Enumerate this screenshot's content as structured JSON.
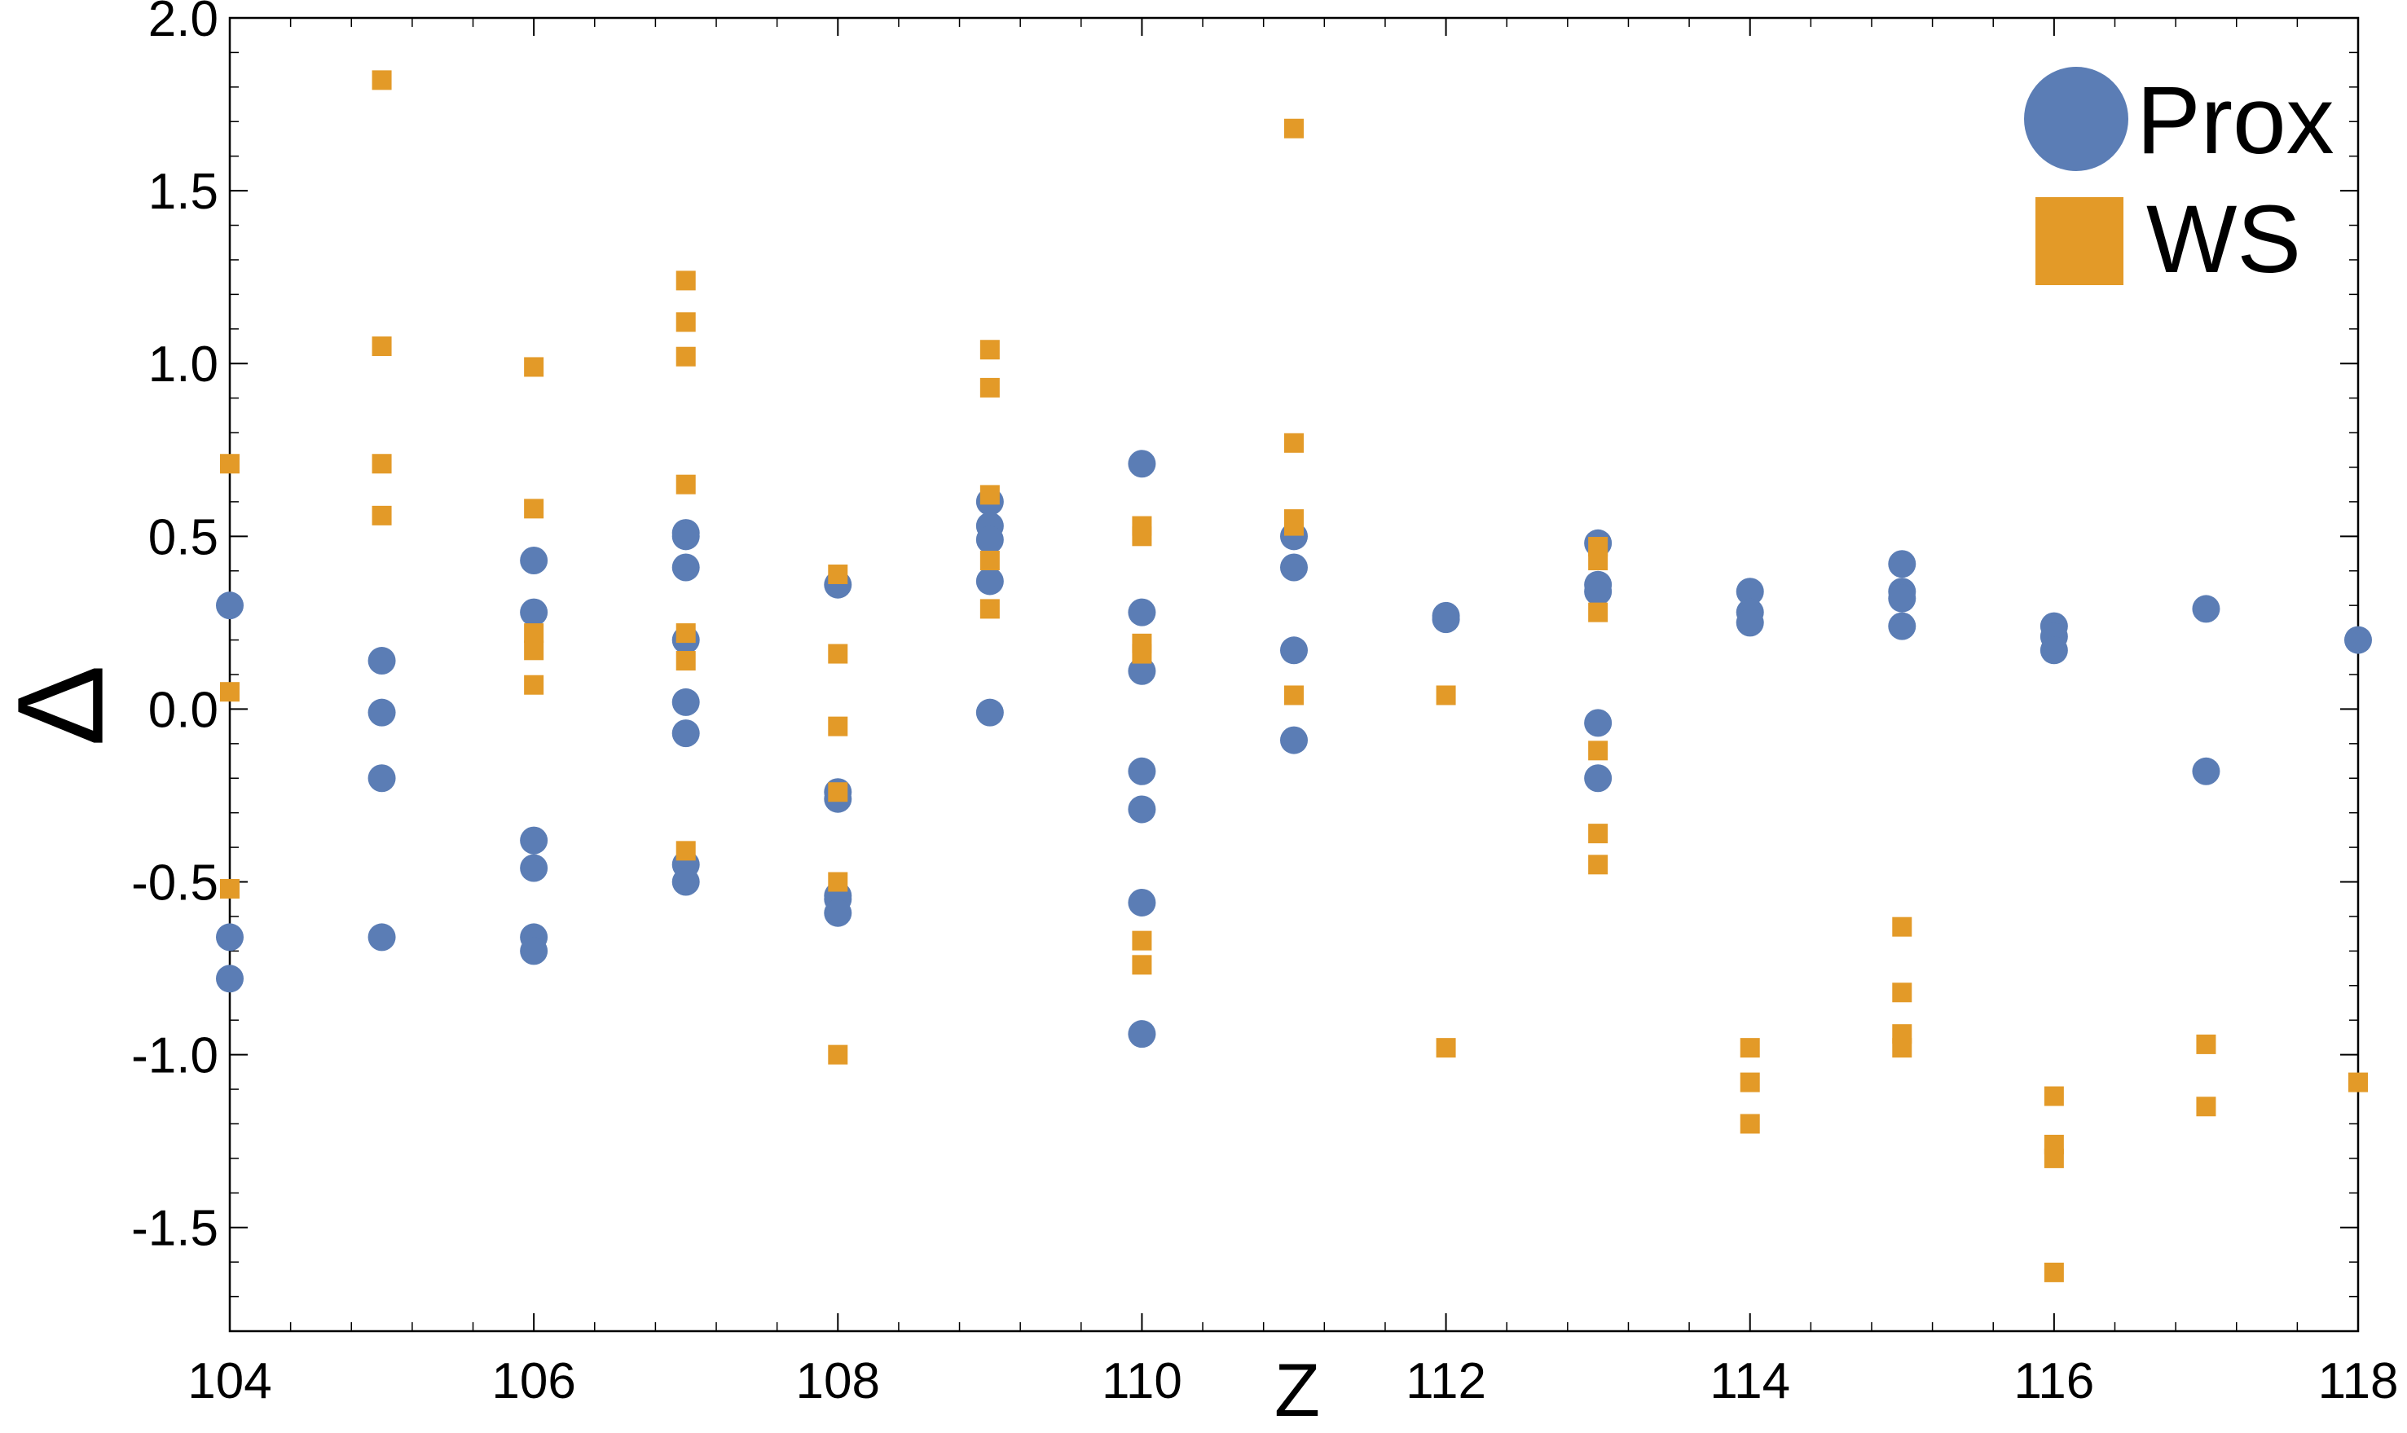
{
  "chart_data": {
    "type": "scatter",
    "xlabel": "Z",
    "ylabel": "Δ",
    "xlim": [
      104,
      118
    ],
    "ylim": [
      -1.8,
      2.0
    ],
    "x_ticks": [
      104,
      106,
      108,
      110,
      112,
      114,
      116,
      118
    ],
    "y_ticks": [
      -1.5,
      -1.0,
      -0.5,
      0.0,
      0.5,
      1.0,
      1.5,
      2.0
    ],
    "x_tick_labels": [
      "104",
      "106",
      "108",
      "110",
      "112",
      "114",
      "116",
      "118"
    ],
    "y_tick_labels": [
      "-1.5",
      "-1.0",
      "-0.5",
      "0.0",
      "0.5",
      "1.0",
      "1.5",
      "2.0"
    ],
    "grid": false,
    "legend_position": "top-right",
    "series": [
      {
        "name": "Prox",
        "marker": "circle",
        "color": "#5B7DB5",
        "points": [
          [
            104,
            0.3
          ],
          [
            104,
            -0.66
          ],
          [
            104,
            -0.78
          ],
          [
            105,
            0.14
          ],
          [
            105,
            -0.01
          ],
          [
            105,
            -0.2
          ],
          [
            105,
            -0.66
          ],
          [
            106,
            0.43
          ],
          [
            106,
            0.28
          ],
          [
            106,
            -0.38
          ],
          [
            106,
            -0.46
          ],
          [
            106,
            -0.66
          ],
          [
            106,
            -0.7
          ],
          [
            107,
            0.51
          ],
          [
            107,
            0.5
          ],
          [
            107,
            0.41
          ],
          [
            107,
            0.2
          ],
          [
            107,
            0.02
          ],
          [
            107,
            -0.07
          ],
          [
            107,
            -0.45
          ],
          [
            107,
            -0.5
          ],
          [
            108,
            0.36
          ],
          [
            108,
            -0.24
          ],
          [
            108,
            -0.26
          ],
          [
            108,
            -0.54
          ],
          [
            108,
            -0.55
          ],
          [
            108,
            -0.59
          ],
          [
            109,
            0.6
          ],
          [
            109,
            0.53
          ],
          [
            109,
            0.49
          ],
          [
            109,
            0.37
          ],
          [
            109,
            -0.01
          ],
          [
            110,
            0.71
          ],
          [
            110,
            0.28
          ],
          [
            110,
            0.11
          ],
          [
            110,
            -0.18
          ],
          [
            110,
            -0.29
          ],
          [
            110,
            -0.56
          ],
          [
            110,
            -0.94
          ],
          [
            111,
            0.5
          ],
          [
            111,
            0.41
          ],
          [
            111,
            0.17
          ],
          [
            111,
            -0.09
          ],
          [
            112,
            0.27
          ],
          [
            112,
            0.26
          ],
          [
            113,
            0.48
          ],
          [
            113,
            0.36
          ],
          [
            113,
            0.34
          ],
          [
            113,
            -0.04
          ],
          [
            113,
            -0.2
          ],
          [
            114,
            0.34
          ],
          [
            114,
            0.28
          ],
          [
            114,
            0.25
          ],
          [
            115,
            0.42
          ],
          [
            115,
            0.34
          ],
          [
            115,
            0.32
          ],
          [
            115,
            0.24
          ],
          [
            116,
            0.24
          ],
          [
            116,
            0.21
          ],
          [
            116,
            0.17
          ],
          [
            117,
            0.29
          ],
          [
            117,
            -0.18
          ],
          [
            118,
            0.2
          ]
        ]
      },
      {
        "name": "WS",
        "marker": "square",
        "color": "#E39A28",
        "points": [
          [
            104,
            0.71
          ],
          [
            104,
            0.05
          ],
          [
            104,
            -0.52
          ],
          [
            105,
            1.82
          ],
          [
            105,
            1.05
          ],
          [
            105,
            0.71
          ],
          [
            105,
            0.56
          ],
          [
            106,
            0.99
          ],
          [
            106,
            0.58
          ],
          [
            106,
            0.22
          ],
          [
            106,
            0.17
          ],
          [
            106,
            0.07
          ],
          [
            107,
            1.24
          ],
          [
            107,
            1.12
          ],
          [
            107,
            1.02
          ],
          [
            107,
            0.65
          ],
          [
            107,
            0.22
          ],
          [
            107,
            0.14
          ],
          [
            107,
            -0.41
          ],
          [
            108,
            0.39
          ],
          [
            108,
            0.16
          ],
          [
            108,
            -0.05
          ],
          [
            108,
            -0.24
          ],
          [
            108,
            -0.5
          ],
          [
            108,
            -1.0
          ],
          [
            109,
            1.04
          ],
          [
            109,
            0.93
          ],
          [
            109,
            0.62
          ],
          [
            109,
            0.43
          ],
          [
            109,
            0.29
          ],
          [
            110,
            0.53
          ],
          [
            110,
            0.5
          ],
          [
            110,
            0.19
          ],
          [
            110,
            0.16
          ],
          [
            110,
            -0.67
          ],
          [
            110,
            -0.74
          ],
          [
            111,
            1.68
          ],
          [
            111,
            0.77
          ],
          [
            111,
            0.55
          ],
          [
            111,
            0.53
          ],
          [
            111,
            0.04
          ],
          [
            112,
            0.04
          ],
          [
            112,
            -0.98
          ],
          [
            113,
            0.47
          ],
          [
            113,
            0.43
          ],
          [
            113,
            0.28
          ],
          [
            113,
            -0.12
          ],
          [
            113,
            -0.36
          ],
          [
            113,
            -0.45
          ],
          [
            114,
            -0.98
          ],
          [
            114,
            -1.08
          ],
          [
            114,
            -1.2
          ],
          [
            115,
            -0.63
          ],
          [
            115,
            -0.82
          ],
          [
            115,
            -0.94
          ],
          [
            115,
            -0.98
          ],
          [
            116,
            -1.12
          ],
          [
            116,
            -1.26
          ],
          [
            116,
            -1.3
          ],
          [
            116,
            -1.63
          ],
          [
            117,
            -0.97
          ],
          [
            117,
            -1.15
          ],
          [
            118,
            -1.08
          ]
        ]
      }
    ]
  }
}
